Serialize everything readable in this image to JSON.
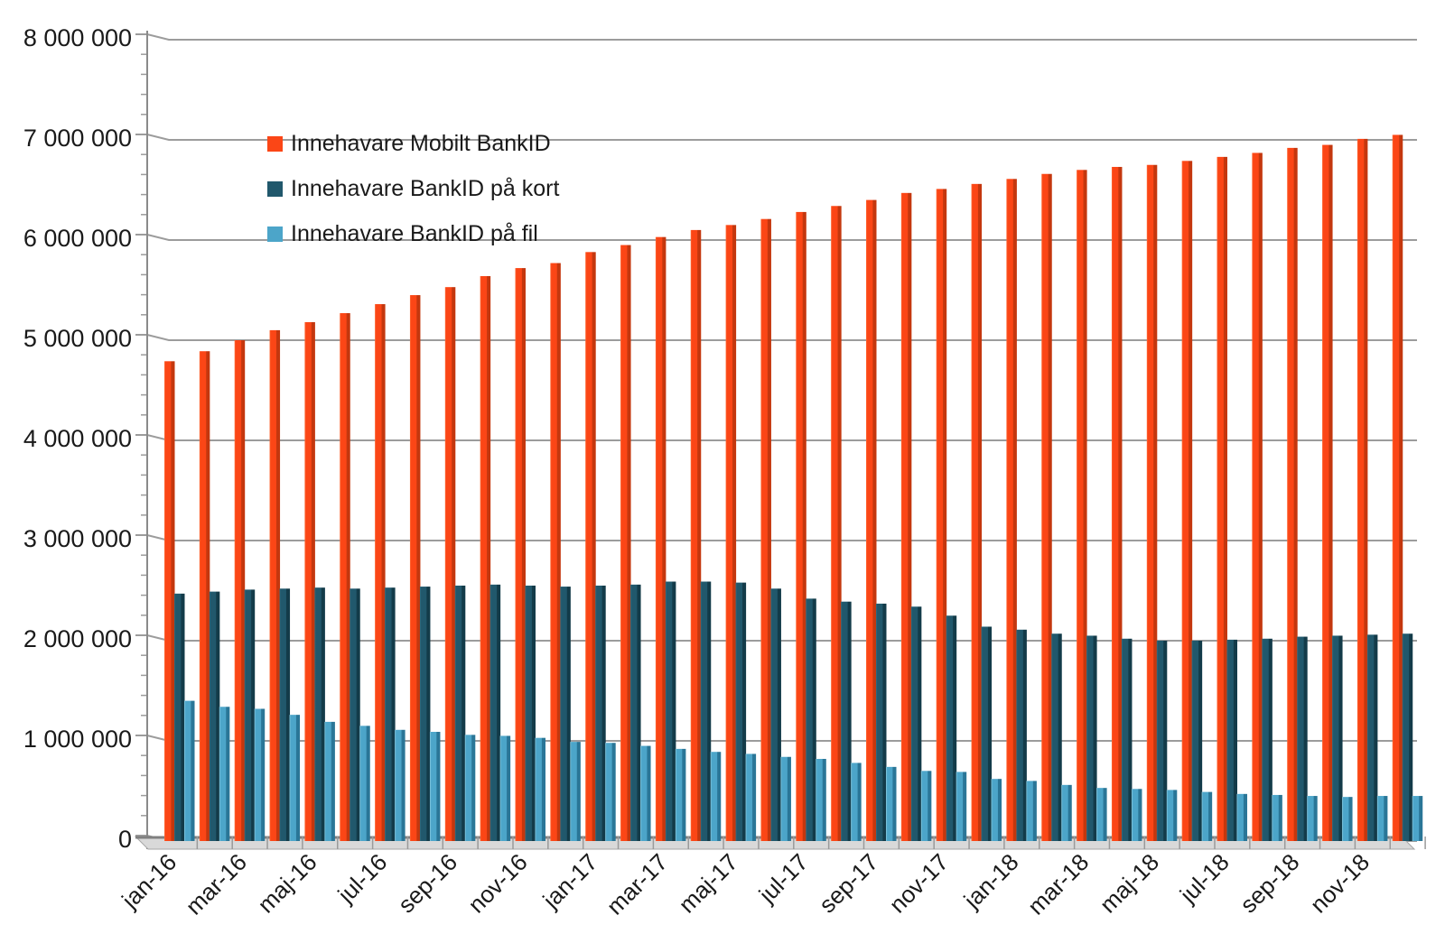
{
  "legend": [
    {
      "label": "Innehavare Mobilt BankID",
      "color": "#FB4616"
    },
    {
      "label": "Innehavare BankID på kort",
      "color": "#21586C"
    },
    {
      "label": "Innehavare BankID på fil",
      "color": "#4CA5C9"
    }
  ],
  "colors": {
    "gridline": "#9c9c9c",
    "axis": "#8a8a8a",
    "floor_fill": "#d9d9d9",
    "floor_edge": "#808080",
    "text": "#1a1a1a",
    "mobilt_main": "#FB4616",
    "mobilt_light": "#FF6B36",
    "mobilt_dark": "#C4370E",
    "kort_main": "#21586C",
    "kort_light": "#336F83",
    "kort_dark": "#133B49",
    "fil_main": "#4CA5C9",
    "fil_light": "#8ECFE3",
    "fil_dark": "#2A7697"
  },
  "chart_data": {
    "type": "bar",
    "title": "",
    "xlabel": "",
    "ylabel": "",
    "grid": true,
    "legend_position": "top-left-inside",
    "ylim": [
      0,
      8000000
    ],
    "y_major_unit": 1000000,
    "y_minor_unit": 200000,
    "y_tick_labels": [
      "0",
      "1 000 000",
      "2 000 000",
      "3 000 000",
      "4 000 000",
      "5 000 000",
      "6 000 000",
      "7 000 000",
      "8 000 000"
    ],
    "x_tick_labels": [
      "jan-16",
      "mar-16",
      "maj-16",
      "jul-16",
      "sep-16",
      "nov-16",
      "jan-17",
      "mar-17",
      "maj-17",
      "jul-17",
      "sep-17",
      "nov-17",
      "jan-18",
      "mar-18",
      "maj-18",
      "jul-18",
      "sep-18",
      "nov-18"
    ],
    "categories": [
      "jan-16",
      "feb-16",
      "mar-16",
      "apr-16",
      "maj-16",
      "jun-16",
      "jul-16",
      "aug-16",
      "sep-16",
      "okt-16",
      "nov-16",
      "dec-16",
      "jan-17",
      "feb-17",
      "mar-17",
      "apr-17",
      "maj-17",
      "jun-17",
      "jul-17",
      "aug-17",
      "sep-17",
      "okt-17",
      "nov-17",
      "dec-17",
      "jan-18",
      "feb-18",
      "mar-18",
      "apr-18",
      "maj-18",
      "jun-18",
      "jul-18",
      "aug-18",
      "sep-18",
      "okt-18",
      "nov-18",
      "dec-18"
    ],
    "series": [
      {
        "name": "Innehavare Mobilt BankID",
        "color": "#FB4616",
        "values": [
          4790000,
          4890000,
          5000000,
          5100000,
          5180000,
          5270000,
          5360000,
          5450000,
          5530000,
          5640000,
          5720000,
          5770000,
          5880000,
          5950000,
          6030000,
          6100000,
          6150000,
          6210000,
          6280000,
          6340000,
          6400000,
          6470000,
          6510000,
          6560000,
          6610000,
          6660000,
          6700000,
          6730000,
          6750000,
          6790000,
          6830000,
          6870000,
          6920000,
          6950000,
          7010000,
          7050000
        ]
      },
      {
        "name": "Innehavare BankID på kort",
        "color": "#21586C",
        "values": [
          2470000,
          2490000,
          2510000,
          2520000,
          2530000,
          2520000,
          2530000,
          2540000,
          2550000,
          2560000,
          2550000,
          2540000,
          2550000,
          2560000,
          2590000,
          2590000,
          2580000,
          2520000,
          2420000,
          2390000,
          2370000,
          2340000,
          2250000,
          2140000,
          2110000,
          2070000,
          2050000,
          2020000,
          2000000,
          2000000,
          2010000,
          2020000,
          2040000,
          2050000,
          2060000,
          2070000
        ]
      },
      {
        "name": "Innehavare BankID på fil",
        "color": "#4CA5C9",
        "values": [
          1400000,
          1340000,
          1320000,
          1260000,
          1190000,
          1150000,
          1110000,
          1090000,
          1060000,
          1050000,
          1030000,
          990000,
          980000,
          950000,
          920000,
          890000,
          870000,
          840000,
          820000,
          780000,
          740000,
          700000,
          690000,
          620000,
          600000,
          560000,
          530000,
          520000,
          510000,
          490000,
          470000,
          460000,
          450000,
          440000,
          450000,
          450000
        ]
      }
    ]
  }
}
